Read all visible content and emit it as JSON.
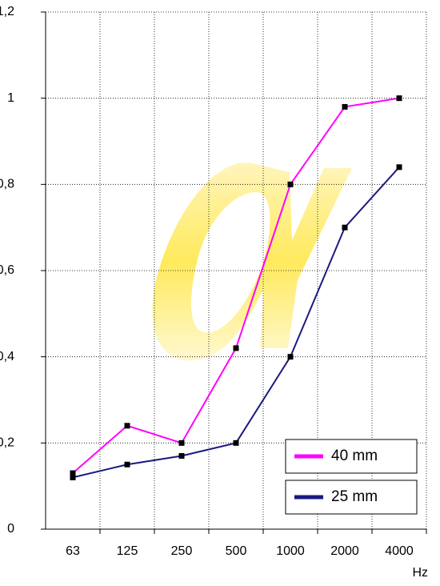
{
  "chart_data": {
    "type": "line",
    "x_label": "Hz",
    "categories": [
      "63",
      "125",
      "250",
      "500",
      "1000",
      "2000",
      "4000"
    ],
    "series": [
      {
        "name": "40 mm",
        "color": "#ff00ff",
        "values": [
          0.13,
          0.24,
          0.2,
          0.42,
          0.8,
          0.98,
          1.0
        ]
      },
      {
        "name": "25 mm",
        "color": "#1a1a80",
        "values": [
          0.12,
          0.15,
          0.17,
          0.2,
          0.4,
          0.7,
          0.84
        ]
      }
    ],
    "ylim": [
      0,
      1.2
    ],
    "yticks": [
      0,
      {
        "value": 0.2,
        "label": "0,2"
      },
      {
        "value": 0.4,
        "label": "0,4"
      },
      {
        "value": 0.6,
        "label": "0,6"
      },
      {
        "value": 0.8,
        "label": "0,8"
      },
      1,
      {
        "value": 1.2,
        "label": "1,2"
      }
    ],
    "grid": true,
    "legend": "lower right",
    "marker_color": "#000000"
  }
}
